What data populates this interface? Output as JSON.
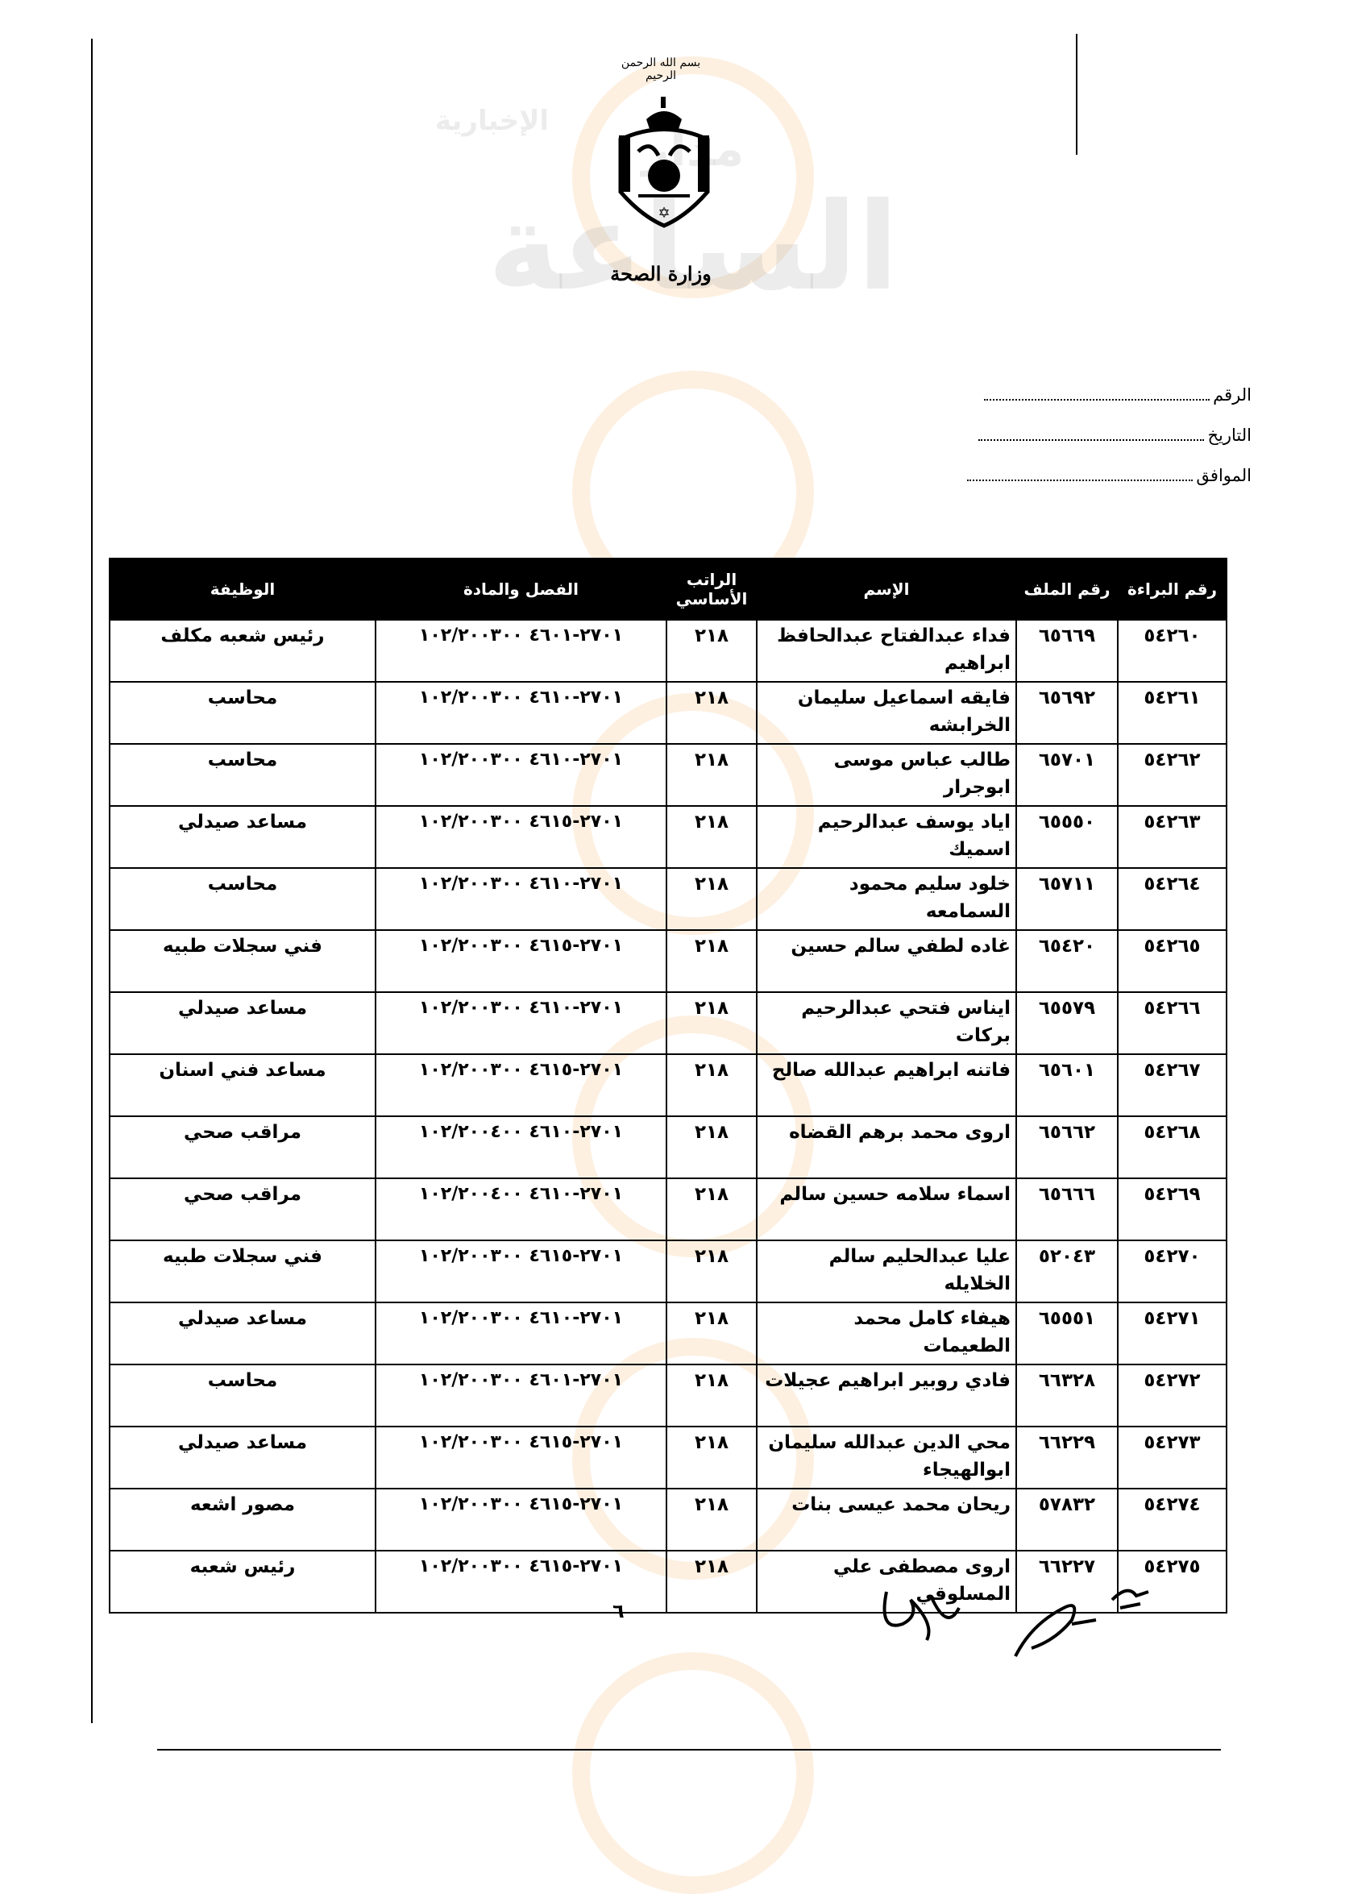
{
  "watermark": {
    "line1": "مدار",
    "line2": "الساعة",
    "line3": "الإخبارية"
  },
  "letterhead": {
    "basmala": "بسم الله الرحمن الرحيم",
    "ministry": "وزارة الصحة"
  },
  "reference_fields": [
    {
      "label": "الرقم",
      "value": ""
    },
    {
      "label": "التاريخ",
      "value": ""
    },
    {
      "label": "الموافق",
      "value": ""
    }
  ],
  "table": {
    "headers": [
      "رقم البراءة",
      "رقم الملف",
      "الإسم",
      "الراتب الأساسي",
      "الفصل والمادة",
      "الوظيفة"
    ],
    "rows": [
      [
        "٥٤٢٦٠",
        "٦٥٦٦٩",
        "فداء عبدالفتاح عبدالحافظ ابراهيم",
        "٢١٨",
        "٢٧٠١-٤٦٠١ ١٠٢/٢٠٠٣٠٠",
        "رئيس شعبه مكلف"
      ],
      [
        "٥٤٢٦١",
        "٦٥٦٩٢",
        "فايقه اسماعيل سليمان الخرابشه",
        "٢١٨",
        "٢٧٠١-٤٦١٠ ١٠٢/٢٠٠٣٠٠",
        "محاسب"
      ],
      [
        "٥٤٢٦٢",
        "٦٥٧٠١",
        "طالب عباس موسى ابوجرار",
        "٢١٨",
        "٢٧٠١-٤٦١٠ ١٠٢/٢٠٠٣٠٠",
        "محاسب"
      ],
      [
        "٥٤٢٦٣",
        "٦٥٥٥٠",
        "اياد يوسف عبدالرحيم اسميك",
        "٢١٨",
        "٢٧٠١-٤٦١٥ ١٠٢/٢٠٠٣٠٠",
        "مساعد صيدلي"
      ],
      [
        "٥٤٢٦٤",
        "٦٥٧١١",
        "خلود سليم محمود السمامعه",
        "٢١٨",
        "٢٧٠١-٤٦١٠ ١٠٢/٢٠٠٣٠٠",
        "محاسب"
      ],
      [
        "٥٤٢٦٥",
        "٦٥٤٢٠",
        "غاده لطفي سالم حسين",
        "٢١٨",
        "٢٧٠١-٤٦١٥ ١٠٢/٢٠٠٣٠٠",
        "فني سجلات طبيه"
      ],
      [
        "٥٤٢٦٦",
        "٦٥٥٧٩",
        "ايناس فتحي عبدالرحيم بركات",
        "٢١٨",
        "٢٧٠١-٤٦١٠ ١٠٢/٢٠٠٣٠٠",
        "مساعد صيدلي"
      ],
      [
        "٥٤٢٦٧",
        "٦٥٦٠١",
        "فاتنه ابراهيم عبدالله صالح",
        "٢١٨",
        "٢٧٠١-٤٦١٥ ١٠٢/٢٠٠٣٠٠",
        "مساعد فني اسنان"
      ],
      [
        "٥٤٢٦٨",
        "٦٥٦٦٢",
        "اروى محمد برهم القضاه",
        "٢١٨",
        "٢٧٠١-٤٦١٠ ١٠٢/٢٠٠٤٠٠",
        "مراقب صحي"
      ],
      [
        "٥٤٢٦٩",
        "٦٥٦٦٦",
        "اسماء سلامه حسين سالم",
        "٢١٨",
        "٢٧٠١-٤٦١٠ ١٠٢/٢٠٠٤٠٠",
        "مراقب صحي"
      ],
      [
        "٥٤٢٧٠",
        "٥٢٠٤٣",
        "عليا عبدالحليم سالم الخلايله",
        "٢١٨",
        "٢٧٠١-٤٦١٥ ١٠٢/٢٠٠٣٠٠",
        "فني سجلات طبيه"
      ],
      [
        "٥٤٢٧١",
        "٦٥٥٥١",
        "هيفاء كامل محمد الطعيمات",
        "٢١٨",
        "٢٧٠١-٤٦١٠ ١٠٢/٢٠٠٣٠٠",
        "مساعد صيدلي"
      ],
      [
        "٥٤٢٧٢",
        "٦٦٣٢٨",
        "فادي روبير ابراهيم عجيلات",
        "٢١٨",
        "٢٧٠١-٤٦٠١ ١٠٢/٢٠٠٣٠٠",
        "محاسب"
      ],
      [
        "٥٤٢٧٣",
        "٦٦٢٢٩",
        "محي الدين عبدالله سليمان ابوالهيجاء",
        "٢١٨",
        "٢٧٠١-٤٦١٥ ١٠٢/٢٠٠٣٠٠",
        "مساعد صيدلي"
      ],
      [
        "٥٤٢٧٤",
        "٥٧٨٣٢",
        "ريحان محمد عيسى بنات",
        "٢١٨",
        "٢٧٠١-٤٦١٥ ١٠٢/٢٠٠٣٠٠",
        "مصور اشعه"
      ],
      [
        "٥٤٢٧٥",
        "٦٦٢٢٧",
        "اروى مصطفى علي المسلوقي",
        "٢١٨",
        "٢٧٠١-٤٦١٥ ١٠٢/٢٠٠٣٠٠",
        "رئيس شعبه"
      ]
    ]
  },
  "page_number": "٦"
}
